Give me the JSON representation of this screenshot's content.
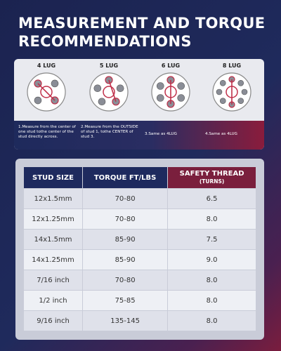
{
  "header": {
    "title_lines": [
      "MEASUREMENT AND TORQUE",
      "RECOMMENDATIONS"
    ]
  },
  "diagrams": [
    {
      "label": "4 LUG",
      "caption": "1.Measure from the center of one stud tothe center of the stud directly across."
    },
    {
      "label": "5 LUG",
      "caption": "2.Measure from the OUTSIDE of stud 1, tothe CENTER of stud 3."
    },
    {
      "label": "6 LUG",
      "caption": "3.Same as 4LUG"
    },
    {
      "label": "8 LUG",
      "caption": "4.Same as 4LUG"
    }
  ],
  "table": {
    "columns": [
      {
        "title": "STUD SIZE"
      },
      {
        "title": "TORQUE FT/LBS"
      },
      {
        "title": "SAFETY THREAD",
        "subtitle": "(TURNS)"
      }
    ],
    "rows": [
      [
        "12x1.5mm",
        "70-80",
        "6.5"
      ],
      [
        "12x1.25mm",
        "70-80",
        "8.0"
      ],
      [
        "14x1.5mm",
        "85-90",
        "7.5"
      ],
      [
        "14x1.25mm",
        "85-90",
        "9.0"
      ],
      [
        "7/16 inch",
        "70-80",
        "8.0"
      ],
      [
        "1/2 inch",
        "75-85",
        "8.0"
      ],
      [
        "9/16 inch",
        "135-145",
        "8.0"
      ]
    ]
  }
}
